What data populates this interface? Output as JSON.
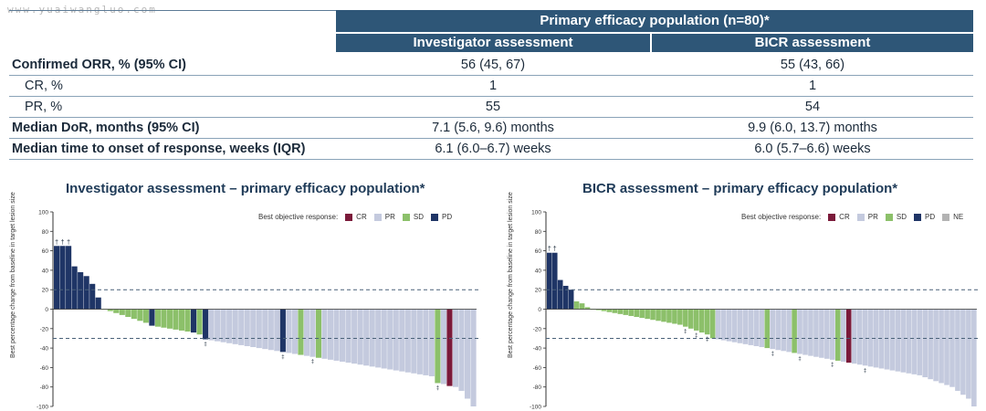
{
  "watermark": "www.yuaiwangluo.com",
  "table": {
    "header_main": "Primary efficacy population (n=80)*",
    "header_inv": "Investigator assessment",
    "header_bicr": "BICR assessment",
    "rows": [
      {
        "label": "Confirmed ORR, % (95% CI)",
        "inv": "56 (45, 67)",
        "bicr": "55 (43, 66)"
      },
      {
        "label": "CR, %",
        "inv": "1",
        "bicr": "1"
      },
      {
        "label": "PR, %",
        "inv": "55",
        "bicr": "54"
      },
      {
        "label": "Median DoR, months (95% CI)",
        "inv": "7.1 (5.6, 9.6) months",
        "bicr": "9.9 (6.0, 13.7) months"
      },
      {
        "label": "Median time to onset of response, weeks (IQR)",
        "inv": "6.1 (6.0–6.7) weeks",
        "bicr": "6.0 (5.7–6.6) weeks"
      }
    ]
  },
  "colors": {
    "CR": "#7b1a3a",
    "PR": "#c4cade",
    "SD": "#8cc06a",
    "PD": "#1f3566",
    "NE": "#b3b3b3",
    "header": "#2e5677"
  },
  "chart_data": [
    {
      "type": "bar",
      "title": "Investigator assessment – primary efficacy population*",
      "ylabel": "Best percentage change from baseline in target lesion size",
      "ylim": [
        -100,
        100
      ],
      "yticks": [
        100,
        80,
        60,
        40,
        20,
        0,
        -20,
        -40,
        -60,
        -80,
        -100
      ],
      "reference_lines": [
        20,
        -30
      ],
      "legend_title": "Best objective response:",
      "legend": [
        "CR",
        "PR",
        "SD",
        "PD"
      ],
      "dagger_label": "†",
      "dagger_bars": [
        0,
        1,
        2
      ],
      "double_dagger_label": "‡",
      "double_dagger_bars": [
        25,
        38,
        43,
        64
      ],
      "values": [
        65,
        65,
        65,
        44,
        38,
        34,
        26,
        12,
        0,
        -2,
        -4,
        -6,
        -8,
        -10,
        -12,
        -14,
        -17,
        -18,
        -19,
        -20,
        -21,
        -22,
        -23,
        -24,
        -26,
        -31,
        -32,
        -33,
        -34,
        -35,
        -36,
        -37,
        -38,
        -39,
        -40,
        -41,
        -42,
        -43,
        -44,
        -45,
        -46,
        -47,
        -48,
        -49,
        -50,
        -51,
        -52,
        -53,
        -54,
        -55,
        -56,
        -57,
        -58,
        -59,
        -60,
        -61,
        -62,
        -63,
        -64,
        -65,
        -66,
        -67,
        -68,
        -69,
        -76,
        -77,
        -79,
        -80,
        -84,
        -92,
        -100
      ],
      "responses": [
        "PD",
        "PD",
        "PD",
        "PD",
        "PD",
        "PD",
        "PD",
        "PD",
        "SD",
        "SD",
        "SD",
        "SD",
        "SD",
        "SD",
        "SD",
        "SD",
        "PD",
        "SD",
        "SD",
        "SD",
        "SD",
        "SD",
        "SD",
        "PD",
        "SD",
        "PD",
        "PR",
        "PR",
        "PR",
        "PR",
        "PR",
        "PR",
        "PR",
        "PR",
        "PR",
        "PR",
        "PR",
        "PR",
        "PD",
        "PR",
        "PR",
        "SD",
        "PR",
        "PR",
        "SD",
        "PR",
        "PR",
        "PR",
        "PR",
        "PR",
        "PR",
        "PR",
        "PR",
        "PR",
        "PR",
        "PR",
        "PR",
        "PR",
        "PR",
        "PR",
        "PR",
        "PR",
        "PR",
        "PR",
        "SD",
        "PR",
        "CR",
        "PR",
        "PR",
        "PR",
        "PR"
      ]
    },
    {
      "type": "bar",
      "title": "BICR assessment – primary efficacy population*",
      "ylabel": "Best percentage change from baseline in target lesion size",
      "ylim": [
        -100,
        100
      ],
      "yticks": [
        100,
        80,
        60,
        40,
        20,
        0,
        -20,
        -40,
        -60,
        -80,
        -100
      ],
      "reference_lines": [
        20,
        -30
      ],
      "legend_title": "Best objective response:",
      "legend": [
        "CR",
        "PR",
        "SD",
        "PD",
        "NE"
      ],
      "dagger_label": "†",
      "dagger_bars": [
        0,
        1
      ],
      "double_dagger_label": "‡",
      "double_dagger_bars": [
        25,
        27,
        29,
        41,
        46,
        52,
        58
      ],
      "values": [
        58,
        58,
        30,
        24,
        20,
        8,
        6,
        2,
        0,
        -1,
        -2,
        -3,
        -4,
        -5,
        -6,
        -7,
        -8,
        -9,
        -10,
        -11,
        -12,
        -13,
        -14,
        -15,
        -16,
        -18,
        -20,
        -22,
        -24,
        -26,
        -30,
        -31,
        -32,
        -33,
        -34,
        -35,
        -36,
        -37,
        -38,
        -39,
        -40,
        -41,
        -42,
        -43,
        -44,
        -45,
        -46,
        -47,
        -48,
        -49,
        -50,
        -51,
        -52,
        -53,
        -54,
        -55,
        -56,
        -57,
        -58,
        -59,
        -60,
        -61,
        -62,
        -63,
        -64,
        -65,
        -66,
        -67,
        -68,
        -70,
        -72,
        -74,
        -76,
        -78,
        -80,
        -84,
        -88,
        -92,
        -100
      ],
      "responses": [
        "PD",
        "PD",
        "PD",
        "PD",
        "PD",
        "SD",
        "SD",
        "SD",
        "SD",
        "SD",
        "SD",
        "SD",
        "SD",
        "SD",
        "SD",
        "SD",
        "SD",
        "SD",
        "SD",
        "SD",
        "SD",
        "SD",
        "SD",
        "SD",
        "SD",
        "SD",
        "SD",
        "SD",
        "SD",
        "SD",
        "SD",
        "PR",
        "PR",
        "PR",
        "PR",
        "PR",
        "PR",
        "PR",
        "PR",
        "PR",
        "SD",
        "PR",
        "PR",
        "PR",
        "PR",
        "SD",
        "PR",
        "PR",
        "PR",
        "PR",
        "PR",
        "PR",
        "PR",
        "SD",
        "PR",
        "CR",
        "PR",
        "PR",
        "PR",
        "PR",
        "PR",
        "PR",
        "PR",
        "PR",
        "PR",
        "PR",
        "PR",
        "PR",
        "PR",
        "PR",
        "PR",
        "PR",
        "PR",
        "PR",
        "PR",
        "PR",
        "PR",
        "PR",
        "PR"
      ]
    }
  ]
}
